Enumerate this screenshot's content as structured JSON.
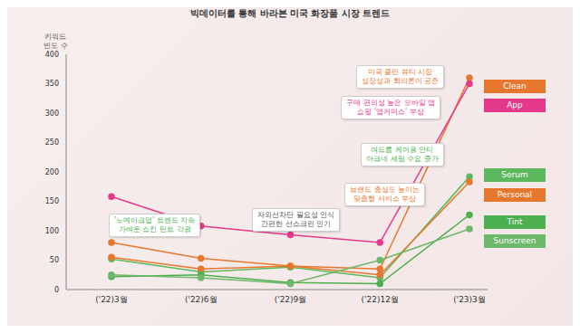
{
  "chart_data": {
    "type": "line",
    "title": "빅데이터를 통해 바라본 미국 화장품 시장 트렌드",
    "y_label": "키워드\n빈도 수",
    "categories": [
      "('22)3월",
      "('22)6월",
      "('22)9월",
      "('22)12월",
      "('23)3월"
    ],
    "series": [
      {
        "name": "Clean",
        "color": "#e8772e",
        "values": [
          80,
          53,
          40,
          35,
          360
        ]
      },
      {
        "name": "App",
        "color": "#e6388a",
        "values": [
          158,
          108,
          93,
          80,
          350
        ]
      },
      {
        "name": "Serum",
        "color": "#5cb85c",
        "values": [
          52,
          30,
          38,
          20,
          192
        ]
      },
      {
        "name": "Personal",
        "color": "#e8772e",
        "values": [
          55,
          35,
          40,
          25,
          183
        ]
      },
      {
        "name": "Tint",
        "color": "#4caf50",
        "values": [
          22,
          25,
          12,
          10,
          127
        ]
      },
      {
        "name": "Sunscreen",
        "color": "#6db86a",
        "values": [
          25,
          20,
          10,
          50,
          103
        ]
      }
    ],
    "ylim": [
      0,
      400
    ],
    "yticks": [
      0,
      50,
      100,
      150,
      200,
      250,
      300,
      350,
      400
    ],
    "grid": false,
    "marker": "circle",
    "annotations": [
      "미국 클린 뷰티 시장\n성장성과 회의론이 공존",
      "구매 편의성 높은 모바일 앱\n쇼핑 '앱커머스' 부상",
      "여드름 케어용 안티\n아크네 세럼 수요 증가",
      "브랜드 충성도 높이는\n맞춤형 서비스 부상",
      "'노메이크업' 트렌드 지속\n가벼운 스킨 틴트 각광",
      "자외선차단 필요성 인식\n간편한 선스크린 인기"
    ]
  }
}
